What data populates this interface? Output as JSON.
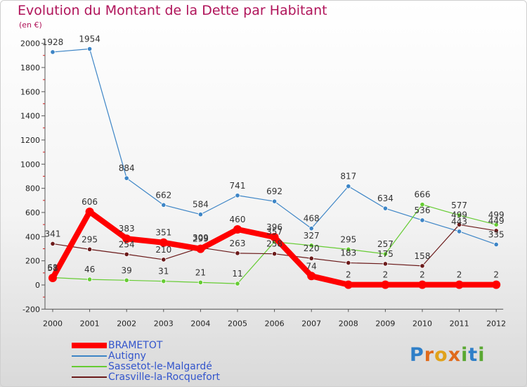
{
  "header": {
    "title": "Evolution du Montant de la Dette par Habitant",
    "unit": "(en €)"
  },
  "logo": {
    "text": "Proxiti"
  },
  "chart_data": {
    "type": "line",
    "title": "Evolution du Montant de la Dette par Habitant",
    "ylabel": "(en €)",
    "xlabel": "",
    "ylim": [
      -200,
      2000
    ],
    "y_ticks": [
      -200,
      0,
      200,
      400,
      600,
      800,
      1000,
      1200,
      1400,
      1600,
      1800,
      2000
    ],
    "categories": [
      "2000",
      "2001",
      "2002",
      "2003",
      "2004",
      "2005",
      "2006",
      "2007",
      "2008",
      "2009",
      "2010",
      "2011",
      "2012"
    ],
    "grid": false,
    "legend_position": "bottom-left",
    "series": [
      {
        "name": "BRAMETOT",
        "color": "#ff0000",
        "values": [
          58,
          606,
          383,
          351,
          299,
          460,
          396,
          74,
          2,
          2,
          2,
          2,
          2
        ]
      },
      {
        "name": "Autigny",
        "color": "#3d85c6",
        "values": [
          1928,
          1954,
          884,
          662,
          584,
          741,
          692,
          468,
          817,
          634,
          536,
          443,
          335
        ]
      },
      {
        "name": "Sassetot-le-Malgardé",
        "color": "#66cc33",
        "values": [
          61,
          46,
          39,
          31,
          21,
          11,
          357,
          327,
          295,
          257,
          666,
          577,
          499
        ]
      },
      {
        "name": "Crasville-la-Rocquefort",
        "color": "#6b1a1a",
        "values": [
          341,
          295,
          254,
          210,
          309,
          263,
          258,
          220,
          183,
          175,
          158,
          499,
          449
        ]
      }
    ]
  }
}
